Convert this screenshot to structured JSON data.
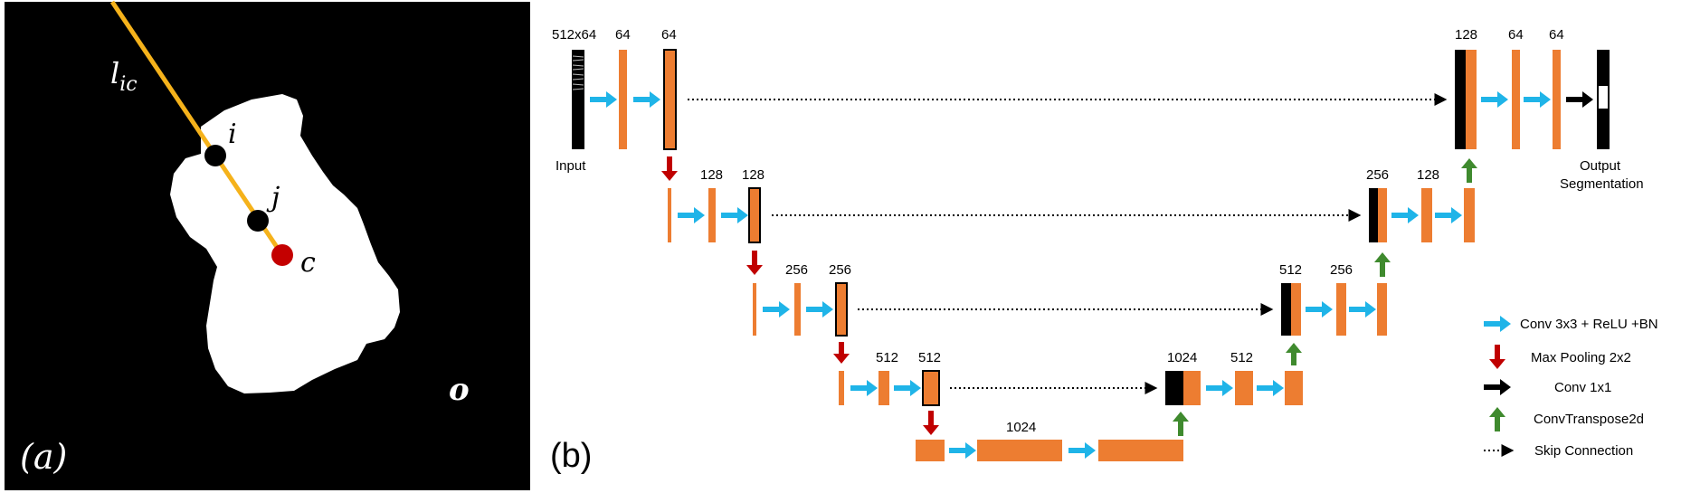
{
  "panel_a": {
    "panel_label": "(a)",
    "line_label": "l",
    "line_label_sub": "ic",
    "point_i": "i",
    "point_j": "j",
    "point_c": "c",
    "region_label": "o",
    "colors": {
      "background": "#000000",
      "shape": "#ffffff",
      "line": "#f5b21b",
      "point": "#000000",
      "center_point": "#c40000"
    }
  },
  "panel_b": {
    "panel_label": "(b)",
    "input_label": "Input",
    "input_size": "512x64",
    "output_label_line1": "Output",
    "output_label_line2": "Segmentation",
    "channel_labels": {
      "l1_a": "64",
      "l1_b": "64",
      "l2_a": "128",
      "l2_b": "128",
      "l3_a": "256",
      "l3_b": "256",
      "l4_a": "512",
      "l4_b": "512",
      "bottleneck": "1024",
      "u4_concat": "1024",
      "u4_conv": "512",
      "u3_concat": "512",
      "u3_conv": "256",
      "u2_concat": "256",
      "u2_conv": "128",
      "u1_concat": "128",
      "u1_a": "64",
      "u1_b": "64"
    },
    "colors": {
      "feature_map": "#ed7d31",
      "conv_arrow": "#1fb4e8",
      "pool_arrow": "#c00000",
      "conv1x1_arrow": "#000000",
      "upconv_arrow": "#3f8a2e",
      "skip": "#000000"
    },
    "legend": [
      {
        "icon": "blue-arrow-icon",
        "label": "Conv 3x3 + ReLU +BN"
      },
      {
        "icon": "red-down-arrow-icon",
        "label": "Max Pooling 2x2"
      },
      {
        "icon": "black-arrow-icon",
        "label": "Conv 1x1"
      },
      {
        "icon": "green-up-arrow-icon",
        "label": "ConvTranspose2d"
      },
      {
        "icon": "dotted-arrow-icon",
        "label": "Skip Connection"
      }
    ]
  }
}
